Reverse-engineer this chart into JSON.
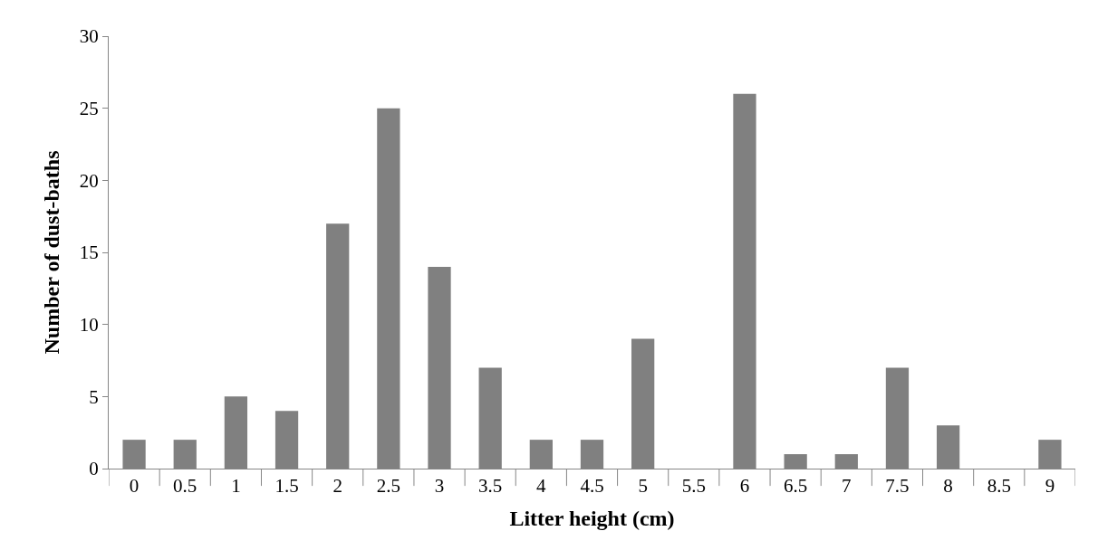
{
  "chart_data": {
    "type": "bar",
    "xlabel": "Litter height (cm)",
    "ylabel": "Number of dust-baths",
    "categories": [
      "0",
      "0.5",
      "1",
      "1.5",
      "2",
      "2.5",
      "3",
      "3.5",
      "4",
      "4.5",
      "5",
      "5.5",
      "6",
      "6.5",
      "7",
      "7.5",
      "8",
      "8.5",
      "9"
    ],
    "values": [
      2,
      2,
      5,
      4,
      17,
      25,
      14,
      7,
      2,
      2,
      9,
      0,
      26,
      1,
      1,
      7,
      3,
      0,
      2
    ],
    "color": "#808080",
    "ylim": [
      0,
      30
    ],
    "yticks": [
      0,
      5,
      10,
      15,
      20,
      25,
      30
    ]
  }
}
